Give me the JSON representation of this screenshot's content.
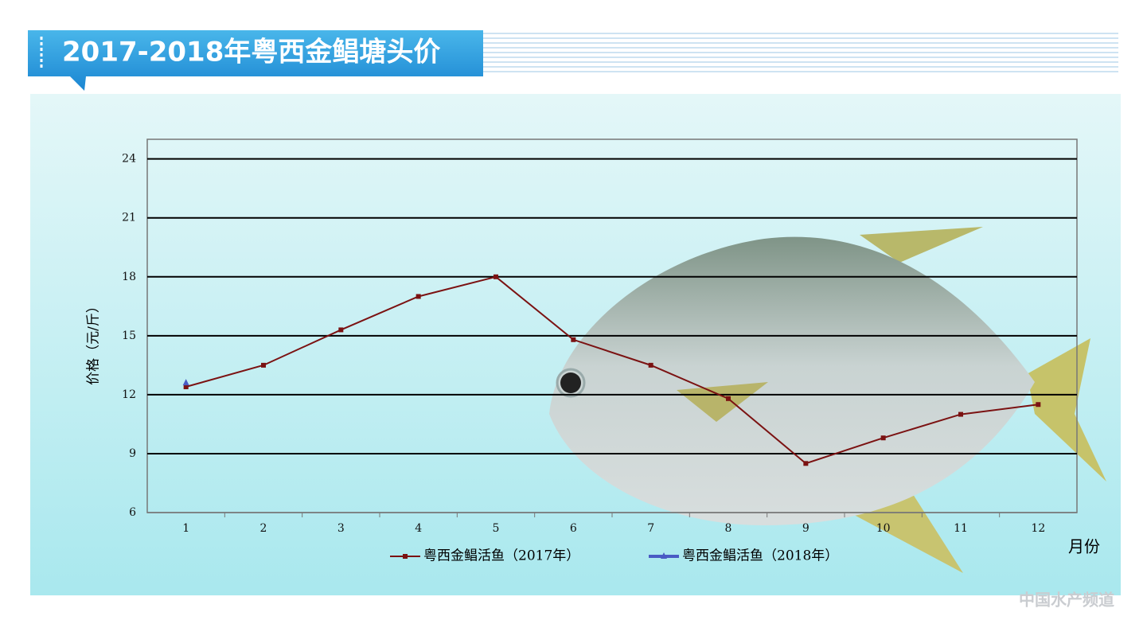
{
  "chart_data": {
    "type": "line",
    "title": "2017-2018年粤西金鲳塘头价",
    "y_label": "价格（元/斤）",
    "x_label": "月份",
    "watermark": "中国水产频道",
    "categories": [
      "1",
      "2",
      "3",
      "4",
      "5",
      "6",
      "7",
      "8",
      "9",
      "10",
      "11",
      "12"
    ],
    "series": [
      {
        "name": "粤西金鲳活鱼（2017年）",
        "color": "#7b1212",
        "marker": "square",
        "values": [
          12.4,
          13.5,
          15.3,
          17,
          18,
          14.8,
          13.5,
          11.8,
          8.5,
          9.8,
          11,
          11.5
        ]
      },
      {
        "name": "粤西金鲳活鱼（2018年）",
        "color": "#4a5bc4",
        "marker": "triangle",
        "values": [
          12.6,
          null,
          null,
          null,
          null,
          null,
          null,
          null,
          null,
          null,
          null,
          null
        ]
      }
    ],
    "ylim": [
      6,
      25
    ],
    "yticks": [
      6,
      9,
      12,
      15,
      18,
      21,
      24
    ],
    "grid": true
  }
}
